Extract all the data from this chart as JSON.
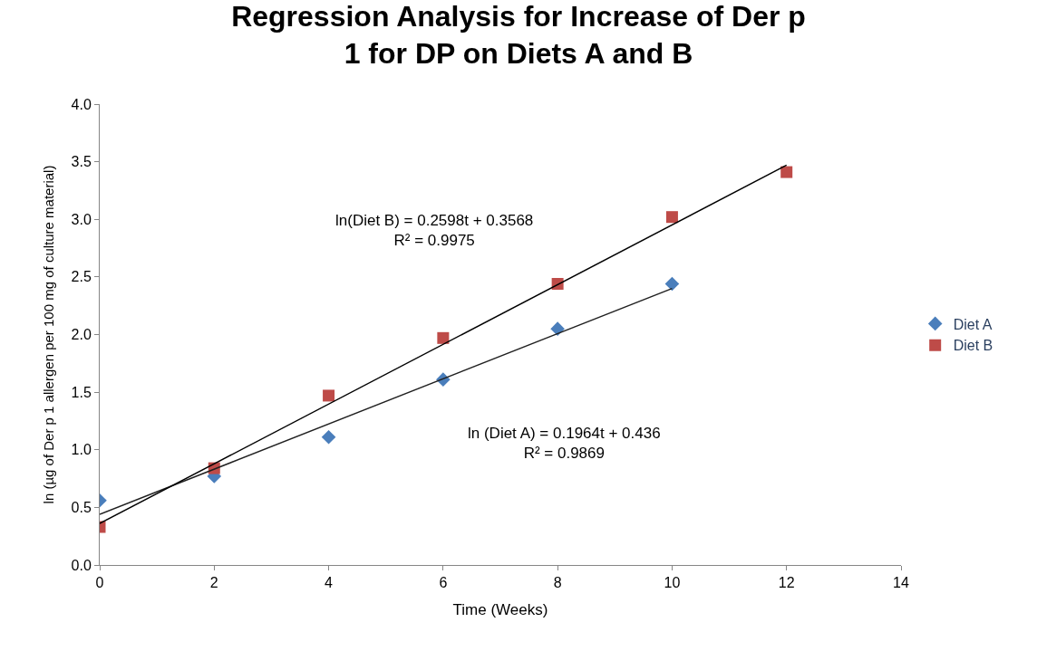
{
  "chart_data": {
    "type": "scatter",
    "title": "Regression Analysis for Increase of Der p 1 for DP on Diets A and B",
    "xlabel": "Time (Weeks)",
    "ylabel": "ln (µg of Der p 1 allergen per 100 mg of culture material)",
    "xlim": [
      0,
      14
    ],
    "xticks": [
      0,
      2,
      4,
      6,
      8,
      10,
      12,
      14
    ],
    "ylim": [
      0,
      4
    ],
    "yticks": [
      {
        "value": 0,
        "label": "0.0"
      },
      {
        "value": 0.5,
        "label": "0.5"
      },
      {
        "value": 1,
        "label": "1.0"
      },
      {
        "value": 1.5,
        "label": "1.5"
      },
      {
        "value": 2,
        "label": "2.0"
      },
      {
        "value": 2.5,
        "label": "2.5"
      },
      {
        "value": 3,
        "label": "3.0"
      },
      {
        "value": 3.5,
        "label": "3.5"
      },
      {
        "value": 4,
        "label": "4.0"
      }
    ],
    "legend": "right",
    "series": [
      {
        "name": "Diet A",
        "color": "#4a7ebb",
        "marker": "diamond",
        "x": [
          0,
          2,
          4,
          6,
          8,
          10
        ],
        "values": [
          0.56,
          0.77,
          1.11,
          1.61,
          2.05,
          2.44
        ]
      },
      {
        "name": "Diet B",
        "color": "#be4b48",
        "marker": "square",
        "x": [
          0,
          2,
          4,
          6,
          8,
          10,
          12
        ],
        "values": [
          0.33,
          0.84,
          1.47,
          1.97,
          2.44,
          3.02,
          3.41
        ]
      },
      {
        "type": "line",
        "color": "#202020",
        "marker": "none",
        "x": [
          0,
          10
        ],
        "values": [
          0.44,
          2.4
        ]
      },
      {
        "type": "line",
        "color": "#000000",
        "marker": "none",
        "x": [
          0,
          12
        ],
        "values": [
          0.36,
          3.47
        ]
      }
    ],
    "annotations": [
      "ln(Diet B) = 0.2598t + 0.3568\nR² = 0.9975",
      "ln (Diet A) = 0.1964t + 0.436\nR² = 0.9869"
    ]
  }
}
